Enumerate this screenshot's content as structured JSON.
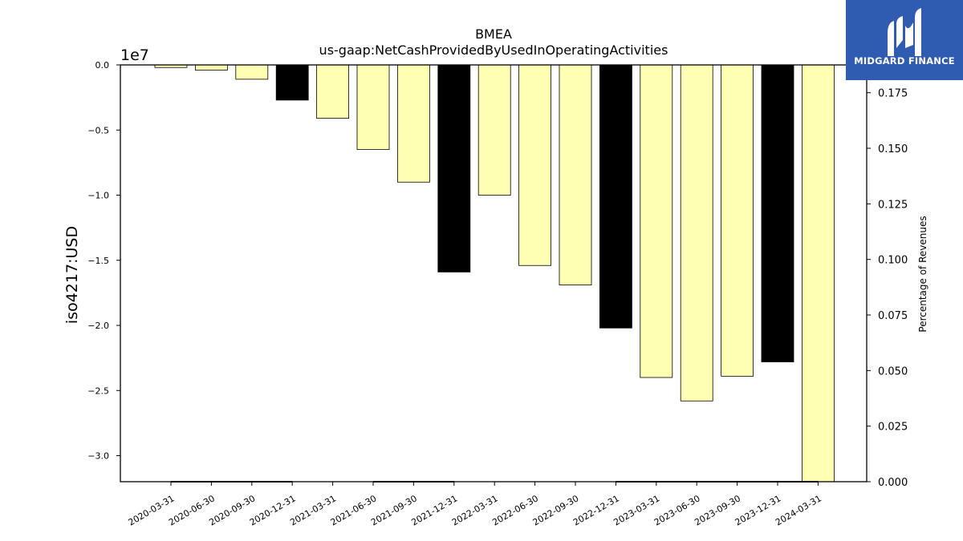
{
  "chart_data": {
    "type": "bar",
    "title": "BMEA",
    "subtitle": "us-gaap:NetCashProvidedByUsedInOperatingActivities",
    "ylabel": "iso4217:USD",
    "y_offset_label": "1e7",
    "y2label": "Percentage of Revenues",
    "categories": [
      "2020-03-31",
      "2020-06-30",
      "2020-09-30",
      "2020-12-31",
      "2021-03-31",
      "2021-06-30",
      "2021-09-30",
      "2021-12-31",
      "2022-03-31",
      "2022-06-30",
      "2022-09-30",
      "2022-12-31",
      "2023-03-31",
      "2023-06-30",
      "2023-09-30",
      "2023-12-31",
      "2024-03-31"
    ],
    "values": [
      -0.02,
      -0.04,
      -0.11,
      -0.27,
      -0.41,
      -0.65,
      -0.9,
      -1.59,
      -1.0,
      -1.54,
      -1.69,
      -2.02,
      -2.4,
      -2.58,
      -2.39,
      -2.28,
      -3.2
    ],
    "bar_colors": [
      "#ffffb3",
      "#ffffb3",
      "#ffffb3",
      "#000000",
      "#ffffb3",
      "#ffffb3",
      "#ffffb3",
      "#000000",
      "#ffffb3",
      "#ffffb3",
      "#ffffb3",
      "#000000",
      "#ffffb3",
      "#ffffb3",
      "#ffffb3",
      "#000000",
      "#ffffb3"
    ],
    "ylim": [
      -3.2,
      0.0
    ],
    "yticks": [
      0.0,
      -0.5,
      -1.0,
      -1.5,
      -2.0,
      -2.5,
      -3.0
    ],
    "ytick_labels": [
      "0.0",
      "−0.5",
      "−1.0",
      "−1.5",
      "−2.0",
      "−2.5",
      "−3.0"
    ],
    "y2lim": [
      0.0,
      0.1875
    ],
    "y2ticks": [
      0.0,
      0.025,
      0.05,
      0.075,
      0.1,
      0.125,
      0.15,
      0.175
    ],
    "y2tick_labels": [
      "0.000",
      "0.025",
      "0.050",
      "0.075",
      "0.100",
      "0.125",
      "0.150",
      "0.175"
    ],
    "pct_series_segments": [
      {
        "from": "2020-03-31",
        "to": "2020-12-31",
        "value": 0.0
      },
      {
        "from": "2021-06-30",
        "to": "2021-12-31",
        "value": 0.0
      },
      {
        "from": "2022-12-31",
        "to": "2024-03-31",
        "value": 0.0
      }
    ],
    "grid": false,
    "legend": "none"
  },
  "logo": {
    "text": "MIDGARD FINANCE",
    "icon": "midgard-logo-icon",
    "background": "#2f5bb0"
  }
}
